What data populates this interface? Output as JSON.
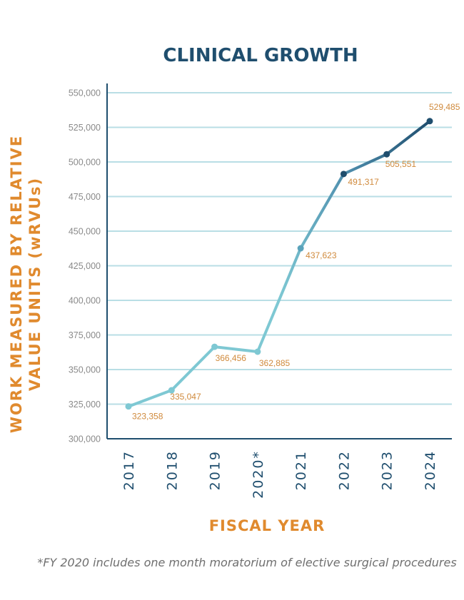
{
  "chart_data": {
    "type": "line",
    "title": "CLINICAL GROWTH",
    "ylabel_line1": "WORK MEASURED BY RELATIVE",
    "ylabel_line2": "VALUE UNITS (wRVUs)",
    "xlabel": "FISCAL YEAR",
    "categories": [
      "2017",
      "2018",
      "2019",
      "2020*",
      "2021",
      "2022",
      "2023",
      "2024"
    ],
    "values": [
      323358,
      335047,
      366456,
      362885,
      437623,
      491317,
      505551,
      529485
    ],
    "data_labels": [
      "323,358",
      "335,047",
      "366,456",
      "362,885",
      "437,623",
      "491,317",
      "505,551",
      "529,485"
    ],
    "ylim": [
      300000,
      550000
    ],
    "yticks": [
      300000,
      325000,
      350000,
      375000,
      400000,
      425000,
      450000,
      475000,
      500000,
      525000,
      550000
    ],
    "ytick_labels": [
      "300,000",
      "325,000",
      "350,000",
      "375,000",
      "400,000",
      "425,000",
      "450,000",
      "475,000",
      "500,000",
      "525,000",
      "550,000"
    ],
    "grid": true,
    "footnote": "*FY 2020 includes one month moratorium of elective surgical procedures",
    "colors": {
      "title": "#1f4e6e",
      "axis_labels": "#e08a2e",
      "data_labels": "#d08a3c",
      "grid": "#b9dee5",
      "line_light": "#7ec8d3",
      "line_dark": "#1f4e6e",
      "x_ticks": "#1f4e6e"
    }
  }
}
